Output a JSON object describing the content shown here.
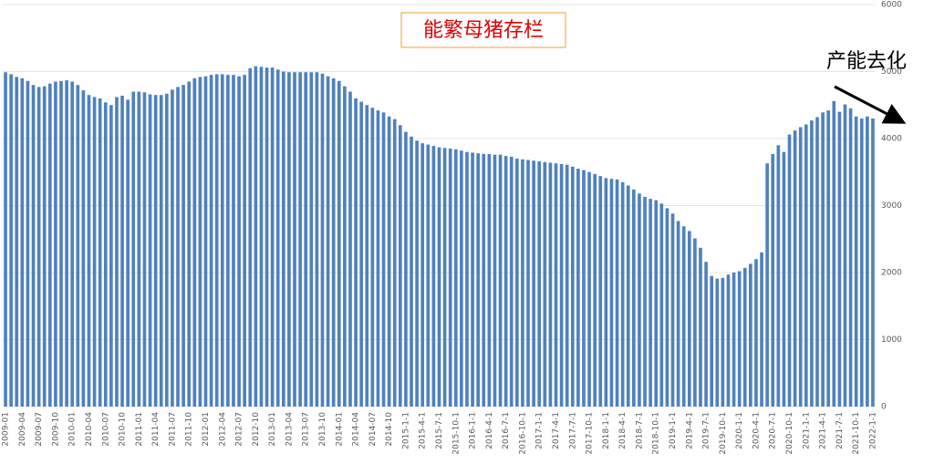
{
  "chart_data": {
    "type": "bar",
    "title": "能繁母猪存栏",
    "annotation": "产能去化",
    "color": "#4f81bd",
    "categories": [
      "2009-01",
      null,
      null,
      "2009-04",
      null,
      null,
      "2009-07",
      null,
      null,
      "2009-10",
      null,
      null,
      "2010-01",
      null,
      null,
      "2010-04",
      null,
      null,
      "2010-07",
      null,
      null,
      "2010-10",
      null,
      null,
      "2011-01",
      null,
      null,
      "2011-04",
      null,
      null,
      "2011-07",
      null,
      null,
      "2011-10",
      null,
      null,
      "2012-01",
      null,
      null,
      "2012-04",
      null,
      null,
      "2012-07",
      null,
      null,
      "2012-10",
      null,
      null,
      "2013-01",
      null,
      null,
      "2013-04",
      null,
      null,
      "2013-07",
      null,
      null,
      "2013-10",
      null,
      null,
      "2014-01",
      null,
      null,
      "2014-04",
      null,
      null,
      "2014-07",
      null,
      null,
      "2014-10",
      null,
      null,
      "2015-1-1",
      null,
      null,
      "2015-4-1",
      null,
      null,
      "2015-7-1",
      null,
      null,
      "2015-10-1",
      null,
      null,
      "2016-1-1",
      null,
      null,
      "2016-4-1",
      null,
      null,
      "2016-7-1",
      null,
      null,
      "2016-10-1",
      null,
      null,
      "2017-1-1",
      null,
      null,
      "2017-4-1",
      null,
      null,
      "2017-7-1",
      null,
      null,
      "2017-10-1",
      null,
      null,
      "2018-1-1",
      null,
      null,
      "2018-4-1",
      null,
      null,
      "2018-7-1",
      null,
      null,
      "2018-10-1",
      null,
      null,
      "2019-1-1",
      null,
      null,
      "2019-4-1",
      null,
      null,
      "2019-7-1",
      null,
      null,
      "2019-10-1",
      null,
      null,
      "2020-1-1",
      null,
      null,
      "2020-4-1",
      null,
      null,
      "2020-7-1",
      null,
      null,
      "2020-10-1",
      null,
      null,
      "2021-1-1",
      null,
      null,
      "2021-4-1",
      null,
      null,
      "2021-7-1",
      null,
      null,
      "2021-10-1",
      null,
      null,
      "2022-1-1"
    ],
    "values": [
      4990,
      4960,
      4920,
      4900,
      4860,
      4800,
      4770,
      4780,
      4820,
      4850,
      4860,
      4870,
      4850,
      4800,
      4720,
      4650,
      4620,
      4600,
      4540,
      4500,
      4620,
      4640,
      4580,
      4700,
      4700,
      4690,
      4660,
      4650,
      4650,
      4670,
      4730,
      4770,
      4800,
      4850,
      4900,
      4920,
      4930,
      4950,
      4960,
      4960,
      4950,
      4950,
      4930,
      4950,
      5050,
      5080,
      5070,
      5060,
      5060,
      5030,
      5000,
      4990,
      4990,
      4990,
      4990,
      4990,
      4990,
      4970,
      4930,
      4900,
      4860,
      4780,
      4700,
      4600,
      4550,
      4500,
      4460,
      4420,
      4390,
      4330,
      4290,
      4200,
      4100,
      4030,
      3970,
      3930,
      3910,
      3890,
      3870,
      3860,
      3850,
      3840,
      3820,
      3800,
      3790,
      3780,
      3770,
      3770,
      3760,
      3760,
      3740,
      3730,
      3700,
      3690,
      3680,
      3670,
      3660,
      3650,
      3640,
      3630,
      3620,
      3610,
      3580,
      3550,
      3530,
      3500,
      3470,
      3440,
      3410,
      3400,
      3390,
      3350,
      3300,
      3240,
      3180,
      3130,
      3100,
      3080,
      3030,
      2960,
      2880,
      2770,
      2690,
      2620,
      2510,
      2370,
      2160,
      1950,
      1910,
      1920,
      1970,
      2000,
      2020,
      2070,
      2130,
      2200,
      2300,
      3630,
      3770,
      3900,
      3800,
      4060,
      4120,
      4170,
      4210,
      4270,
      4320,
      4390,
      4420,
      4560,
      4400,
      4510,
      4450,
      4330,
      4300,
      4330,
      4300
    ],
    "ylim": [
      0,
      6000
    ],
    "yticks": [
      0,
      1000,
      2000,
      3000,
      4000,
      5000,
      6000
    ],
    "grid": true
  }
}
